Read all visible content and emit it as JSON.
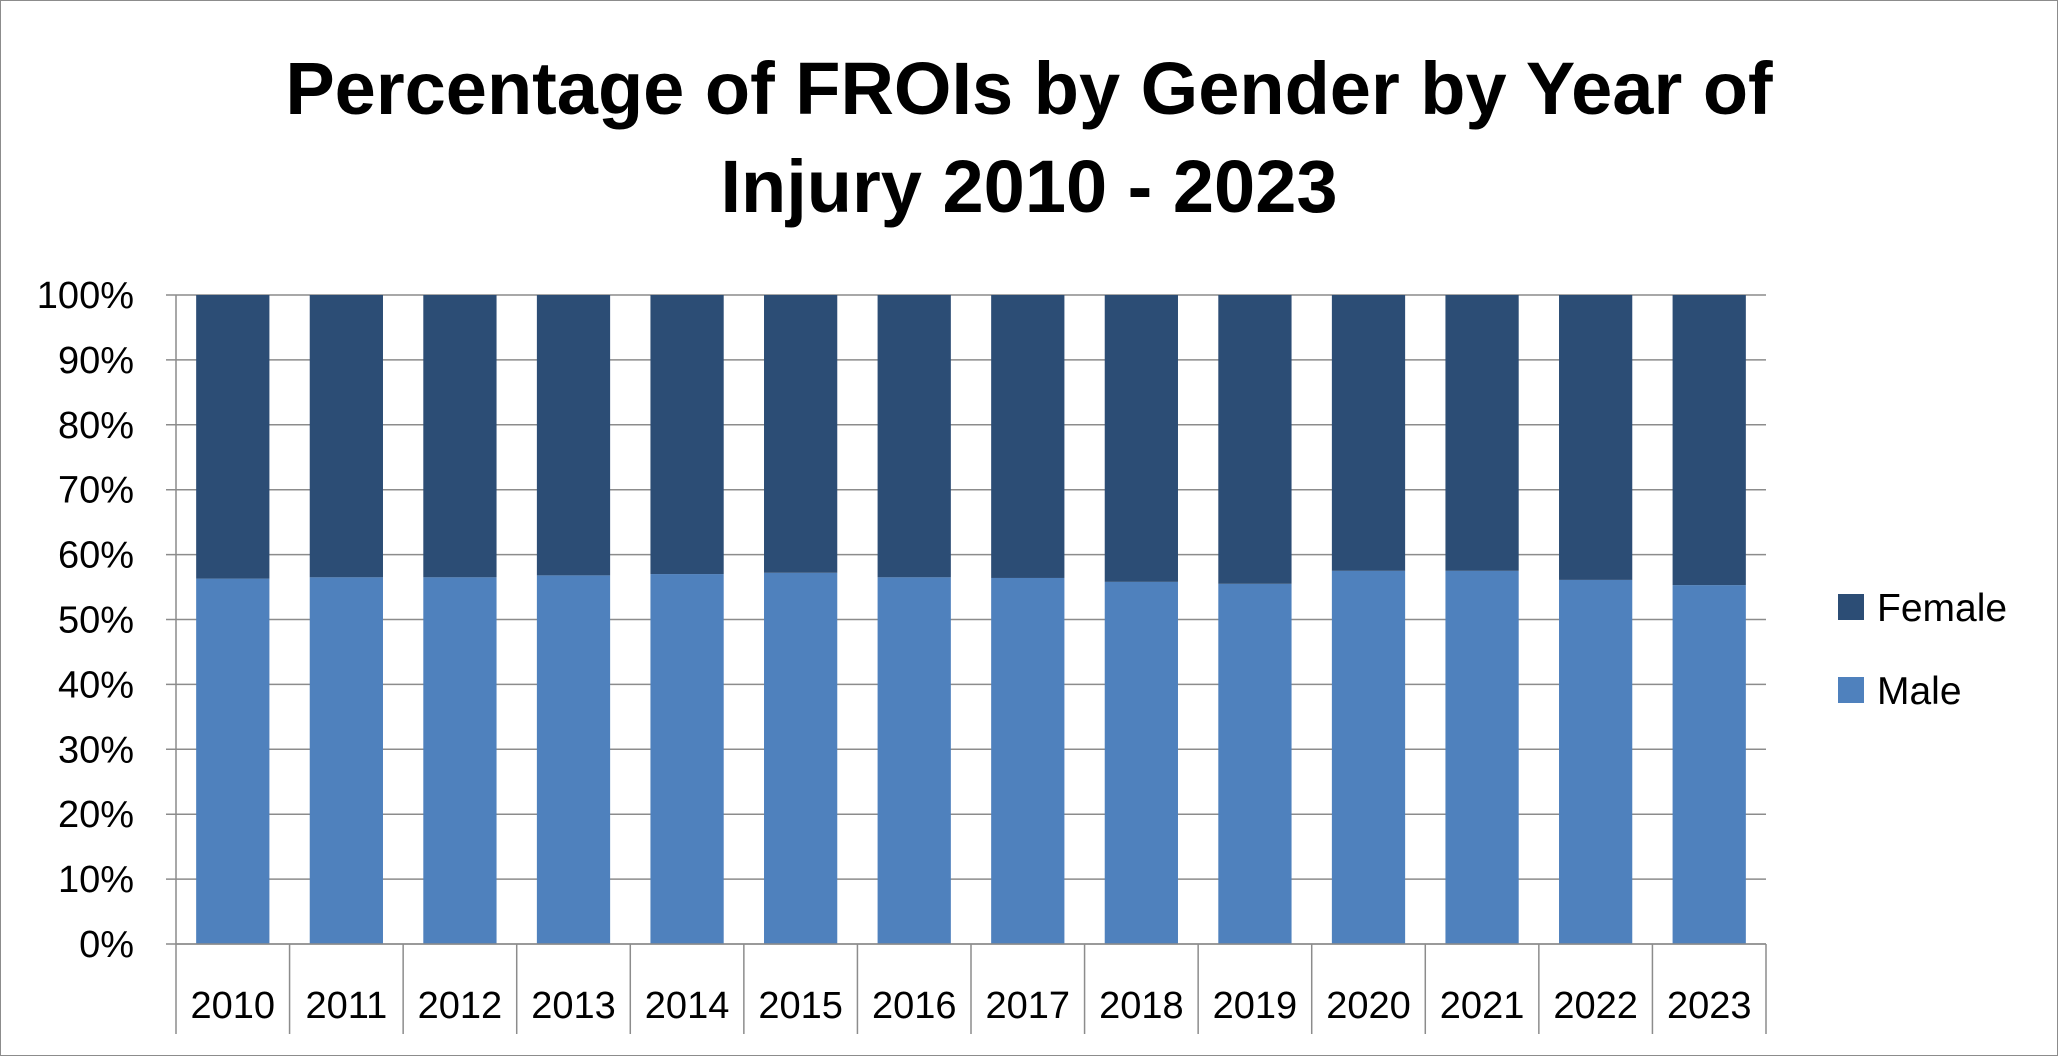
{
  "chart_data": {
    "type": "bar",
    "stacked": true,
    "percent": true,
    "title": [
      "Percentage of FROIs by Gender by Year of",
      "Injury 2010 - 2023"
    ],
    "xlabel": "",
    "ylabel": "",
    "categories": [
      "2010",
      "2011",
      "2012",
      "2013",
      "2014",
      "2015",
      "2016",
      "2017",
      "2018",
      "2019",
      "2020",
      "2021",
      "2022",
      "2023"
    ],
    "series": [
      {
        "name": "Male",
        "color": "#4f81bd",
        "values": [
          56.3,
          56.5,
          56.5,
          56.8,
          57.0,
          57.2,
          56.5,
          56.4,
          55.8,
          55.5,
          57.5,
          57.5,
          56.1,
          55.3
        ]
      },
      {
        "name": "Female",
        "color": "#2c4d75",
        "values": [
          43.7,
          43.5,
          43.5,
          43.2,
          43.0,
          42.8,
          43.5,
          43.6,
          44.2,
          44.5,
          42.5,
          42.5,
          43.9,
          44.7
        ]
      }
    ],
    "ylim": [
      0,
      100
    ],
    "yticks": [
      "0%",
      "10%",
      "20%",
      "30%",
      "40%",
      "50%",
      "60%",
      "70%",
      "80%",
      "90%",
      "100%"
    ],
    "grid": true,
    "legend": {
      "placement": "right",
      "entries": [
        "Female",
        "Male"
      ]
    }
  }
}
